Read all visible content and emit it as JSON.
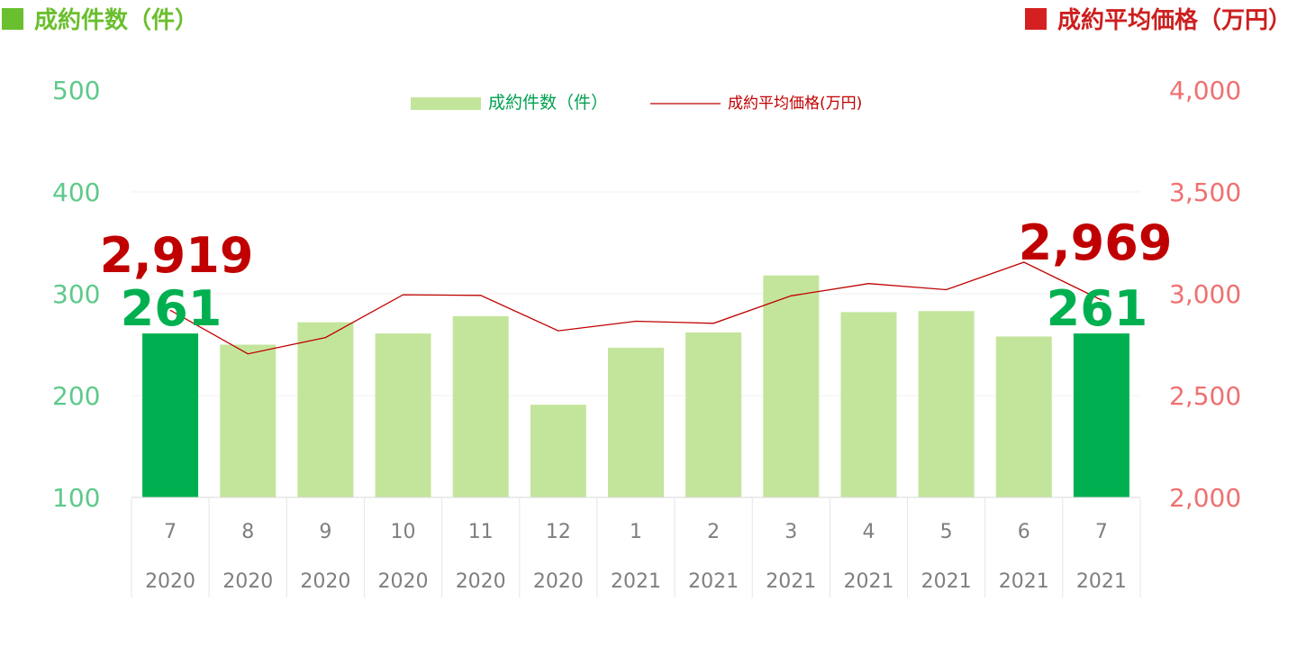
{
  "header": {
    "left_title": "成約件数（件）",
    "right_title": "成約平均価格（万円）",
    "left_color": "#6abf2e",
    "right_color": "#d42020"
  },
  "chart_data": {
    "type": "bar",
    "categories": [
      {
        "month": "7",
        "year": "2020"
      },
      {
        "month": "8",
        "year": "2020"
      },
      {
        "month": "9",
        "year": "2020"
      },
      {
        "month": "10",
        "year": "2020"
      },
      {
        "month": "11",
        "year": "2020"
      },
      {
        "month": "12",
        "year": "2020"
      },
      {
        "month": "1",
        "year": "2021"
      },
      {
        "month": "2",
        "year": "2021"
      },
      {
        "month": "3",
        "year": "2021"
      },
      {
        "month": "4",
        "year": "2021"
      },
      {
        "month": "5",
        "year": "2021"
      },
      {
        "month": "6",
        "year": "2021"
      },
      {
        "month": "7",
        "year": "2021"
      }
    ],
    "series": [
      {
        "name": "成約件数（件）",
        "type": "bar",
        "axis": "left",
        "values": [
          261,
          250,
          272,
          261,
          278,
          191,
          247,
          262,
          318,
          282,
          283,
          258,
          261
        ],
        "color": "#c3e59b",
        "highlight_color": "#00b050",
        "highlight_indices": [
          0,
          12
        ]
      },
      {
        "name": "成約平均価格(万円)",
        "type": "line",
        "axis": "right",
        "values": [
          2919,
          2705,
          2785,
          2995,
          2992,
          2818,
          2865,
          2855,
          2990,
          3050,
          3020,
          3155,
          2969
        ],
        "color": "#c00000"
      }
    ],
    "y_left": {
      "ticks": [
        "100",
        "200",
        "300",
        "400",
        "500"
      ],
      "ylim": [
        100,
        500
      ],
      "color": "#5ec98a"
    },
    "y_right": {
      "ticks": [
        "2,000",
        "2,500",
        "3,000",
        "3,500",
        "4,000"
      ],
      "ylim": [
        2000,
        4000
      ],
      "color": "#f07070"
    },
    "annotations": [
      {
        "index": 0,
        "price_label": "2,919",
        "count_label": "261"
      },
      {
        "index": 12,
        "price_label": "2,969",
        "count_label": "261"
      }
    ],
    "annotation_colors": {
      "price": "#c00000",
      "count": "#00b050"
    },
    "legend_position": "top-center",
    "grid": true
  }
}
